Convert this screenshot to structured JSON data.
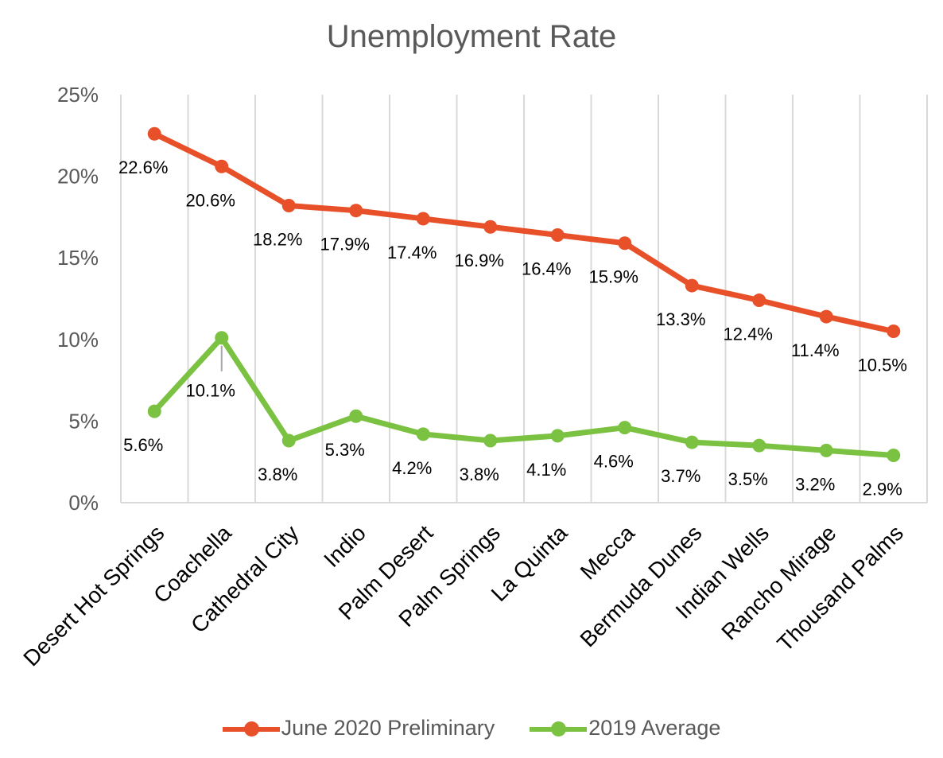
{
  "chart_data": {
    "type": "line",
    "title": "Unemployment Rate",
    "xlabel": "",
    "ylabel": "",
    "ylim": [
      0,
      25
    ],
    "yticks": [
      "0%",
      "5%",
      "10%",
      "15%",
      "20%",
      "25%"
    ],
    "categories": [
      "Desert Hot Springs",
      "Coachella",
      "Cathedral City",
      "Indio",
      "Palm Desert",
      "Palm Springs",
      "La Quinta",
      "Mecca",
      "Bermuda Dunes",
      "Indian Wells",
      "Rancho Mirage",
      "Thousand Palms"
    ],
    "series": [
      {
        "name": "June 2020 Preliminary",
        "color": "#E8502A",
        "values": [
          22.6,
          20.6,
          18.2,
          17.9,
          17.4,
          16.9,
          16.4,
          15.9,
          13.3,
          12.4,
          11.4,
          10.5
        ],
        "labels": [
          "22.6%",
          "20.6%",
          "18.2%",
          "17.9%",
          "17.4%",
          "16.9%",
          "16.4%",
          "15.9%",
          "13.3%",
          "12.4%",
          "11.4%",
          "10.5%"
        ]
      },
      {
        "name": "2019 Average",
        "color": "#7CC242",
        "values": [
          5.6,
          10.1,
          3.8,
          5.3,
          4.2,
          3.8,
          4.1,
          4.6,
          3.7,
          3.5,
          3.2,
          2.9
        ],
        "labels": [
          "5.6%",
          "10.1%",
          "3.8%",
          "5.3%",
          "4.2%",
          "3.8%",
          "4.1%",
          "4.6%",
          "3.7%",
          "3.5%",
          "3.2%",
          "2.9%"
        ]
      }
    ],
    "grid": true,
    "legend_position": "bottom"
  }
}
